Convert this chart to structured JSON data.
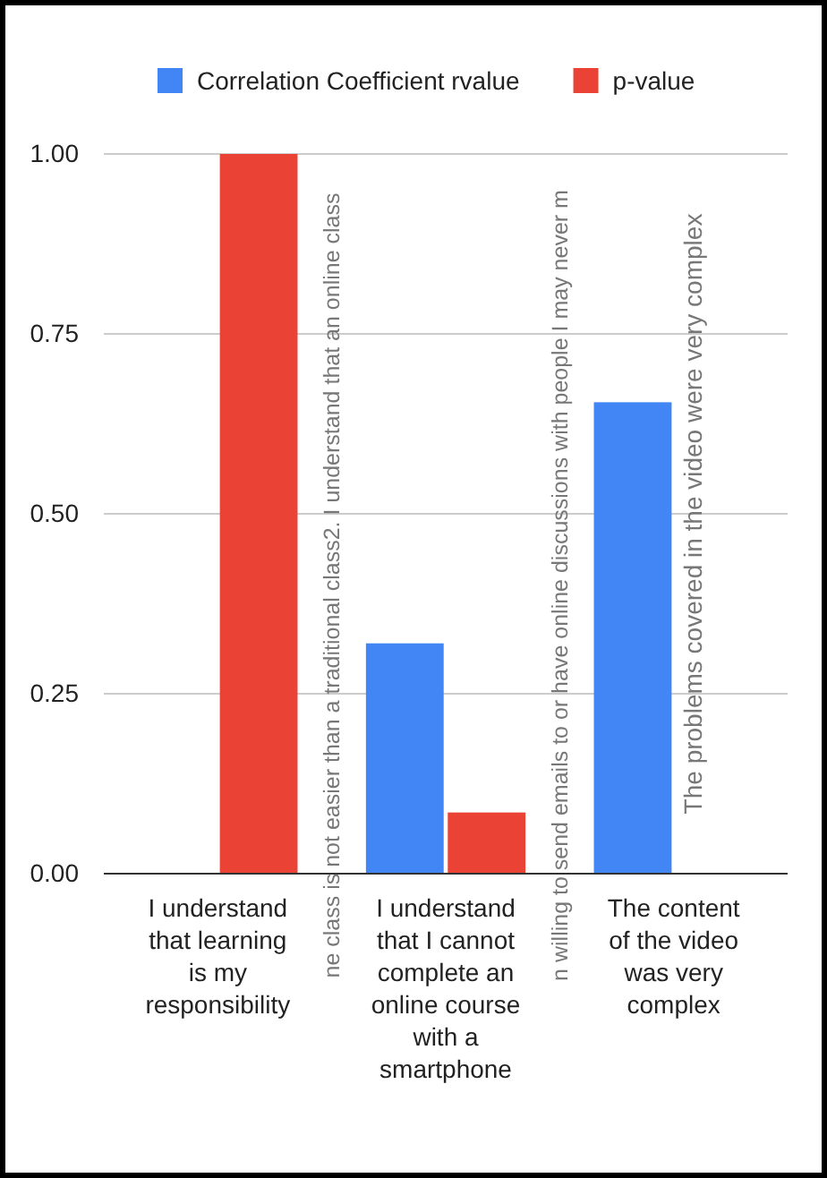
{
  "chart_data": {
    "type": "bar",
    "categories": [
      "I understand that learning is my responsibility",
      "I understand that I cannot complete an online course with a smartphone",
      "The content of the video was very complex"
    ],
    "series": [
      {
        "name": "Correlation Coefficient rvalue",
        "color": "#4285f4",
        "values": [
          0,
          0.32,
          0.655
        ]
      },
      {
        "name": "p-value",
        "color": "#ea4335",
        "values": [
          1.0,
          0.085,
          0
        ]
      }
    ],
    "ylim": [
      0,
      1.0
    ],
    "yticks": [
      {
        "value": 0,
        "label": "0.00"
      },
      {
        "value": 0.25,
        "label": "0.25"
      },
      {
        "value": 0.5,
        "label": "0.50"
      },
      {
        "value": 0.75,
        "label": "0.75"
      },
      {
        "value": 1.0,
        "label": "1.00"
      }
    ],
    "grid": "y",
    "legend": "top",
    "annotations": [
      "ne class is not easier than a traditional class2. I understand that an online class",
      "n willing to send emails to or have online discussions with people I may never m",
      "The problems covered in the video were very complex"
    ]
  }
}
